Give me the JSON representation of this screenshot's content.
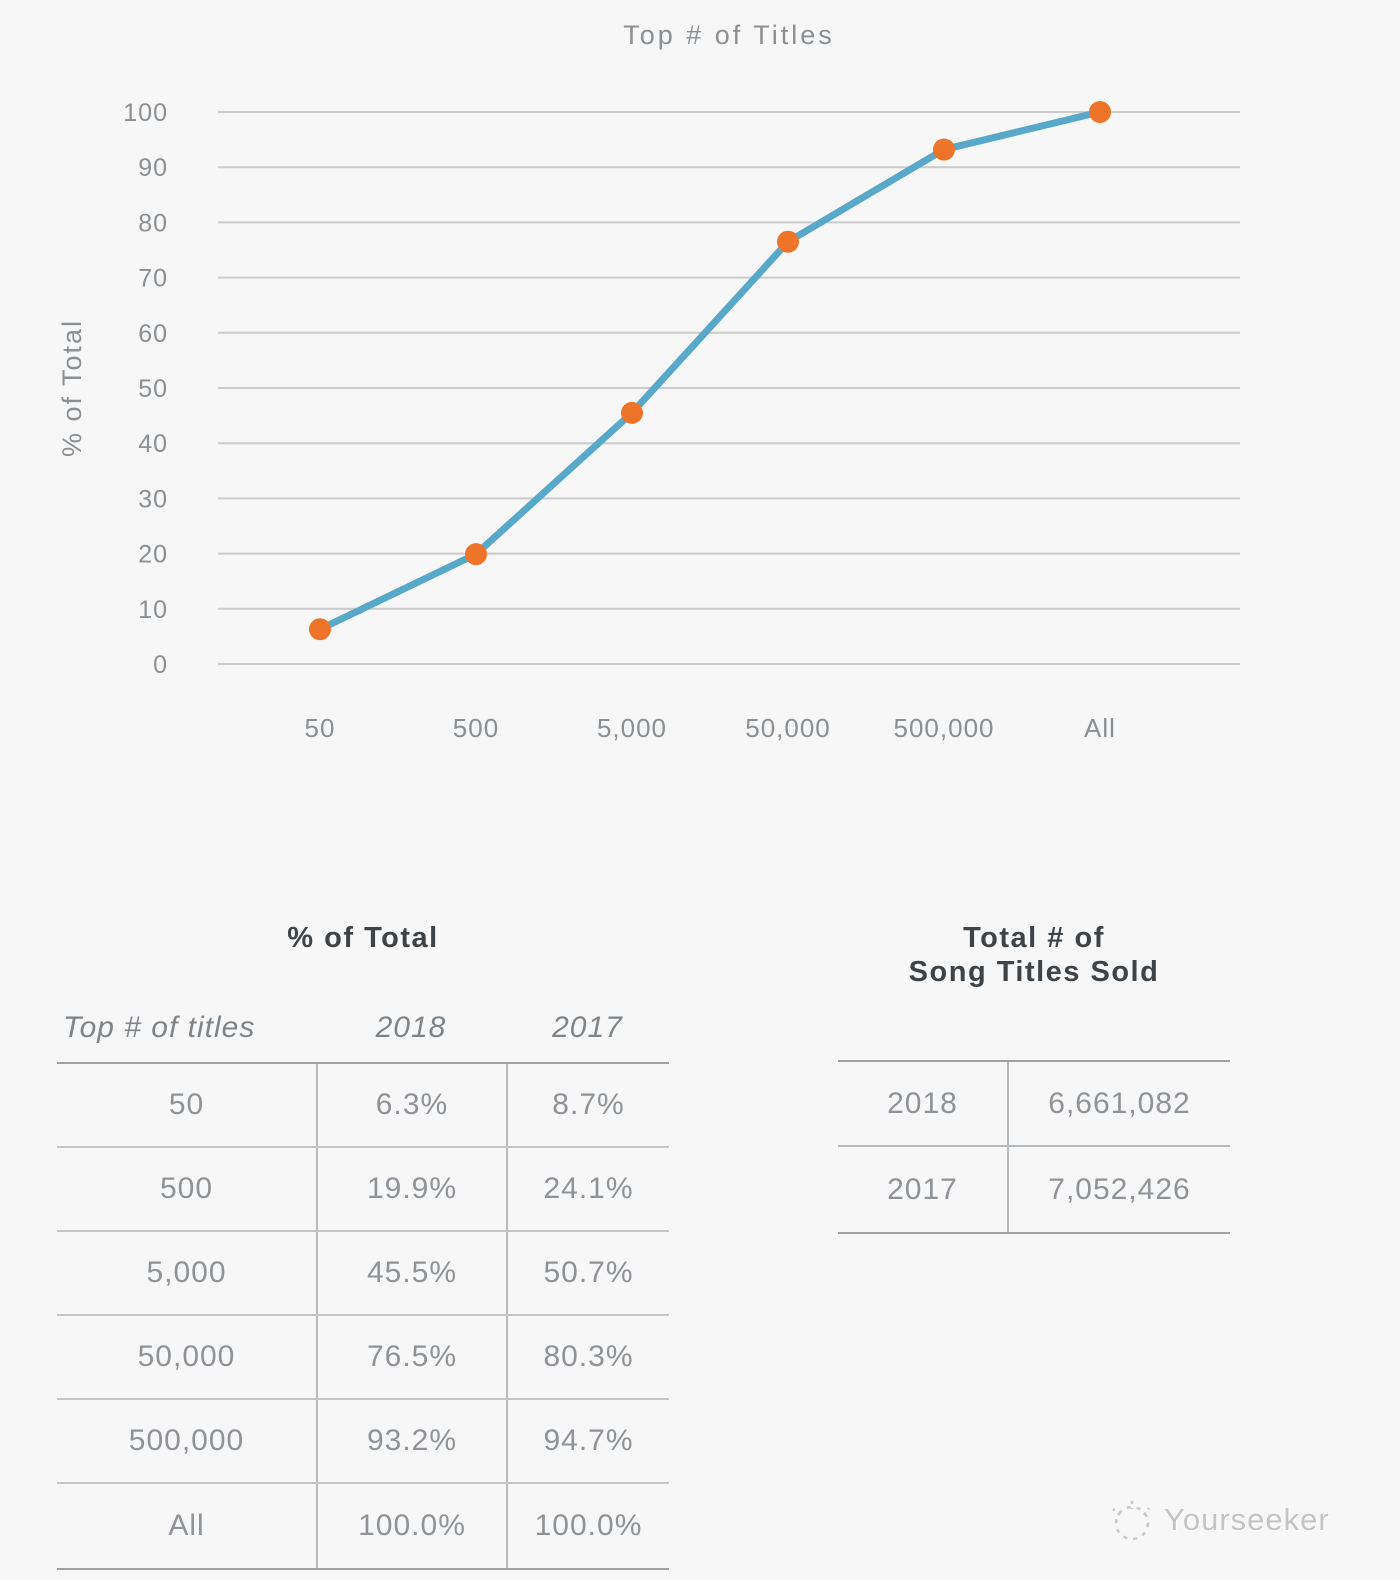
{
  "chart_data": {
    "type": "line",
    "title": "Top # of Titles",
    "xlabel": "",
    "ylabel": "% of Total",
    "categories": [
      "50",
      "500",
      "5,000",
      "50,000",
      "500,000",
      "All"
    ],
    "series": [
      {
        "name": "2018",
        "values": [
          6.3,
          19.9,
          45.5,
          76.5,
          93.2,
          100.0
        ]
      }
    ],
    "ylim": [
      0,
      100
    ],
    "yticks": [
      0,
      10,
      20,
      30,
      40,
      50,
      60,
      70,
      80,
      90,
      100
    ],
    "grid": true,
    "legend_position": "none",
    "line_color": "#58a8c9",
    "marker_color": "#ed7428",
    "gridline_color": "#cbcbcb"
  },
  "percent_table": {
    "title": "% of Total",
    "columns": [
      "Top # of titles",
      "2018",
      "2017"
    ],
    "rows": [
      [
        "50",
        "6.3%",
        "8.7%"
      ],
      [
        "500",
        "19.9%",
        "24.1%"
      ],
      [
        "5,000",
        "45.5%",
        "50.7%"
      ],
      [
        "50,000",
        "76.5%",
        "80.3%"
      ],
      [
        "500,000",
        "93.2%",
        "94.7%"
      ],
      [
        "All",
        "100.0%",
        "100.0%"
      ]
    ]
  },
  "totals_table": {
    "title_line1": "Total # of",
    "title_line2": "Song Titles Sold",
    "rows": [
      [
        "2018",
        "6,661,082"
      ],
      [
        "2017",
        "7,052,426"
      ]
    ]
  },
  "watermark": {
    "label": "Yourseeker"
  }
}
